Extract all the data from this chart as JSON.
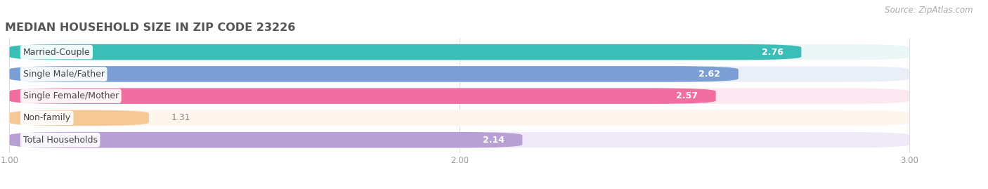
{
  "title": "MEDIAN HOUSEHOLD SIZE IN ZIP CODE 23226",
  "source": "Source: ZipAtlas.com",
  "categories": [
    "Married-Couple",
    "Single Male/Father",
    "Single Female/Mother",
    "Non-family",
    "Total Households"
  ],
  "values": [
    2.76,
    2.62,
    2.57,
    1.31,
    2.14
  ],
  "bar_colors": [
    "#3bbdb8",
    "#7b9fd4",
    "#f06fa0",
    "#f5c896",
    "#b89fd4"
  ],
  "bar_bg_colors": [
    "#eaf7f6",
    "#eaeff7",
    "#fde8f1",
    "#fef6ec",
    "#f0eaf8"
  ],
  "xmin": 1.0,
  "xmax": 3.0,
  "xticks": [
    1.0,
    2.0,
    3.0
  ],
  "title_fontsize": 11.5,
  "label_fontsize": 9,
  "value_fontsize": 9,
  "source_fontsize": 8.5,
  "bg_color": "#ffffff"
}
